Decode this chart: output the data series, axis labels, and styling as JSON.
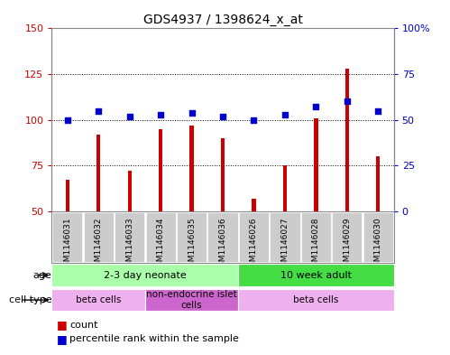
{
  "title": "GDS4937 / 1398624_x_at",
  "samples": [
    "GSM1146031",
    "GSM1146032",
    "GSM1146033",
    "GSM1146034",
    "GSM1146035",
    "GSM1146036",
    "GSM1146026",
    "GSM1146027",
    "GSM1146028",
    "GSM1146029",
    "GSM1146030"
  ],
  "counts": [
    67,
    92,
    72,
    95,
    97,
    90,
    57,
    75,
    101,
    128,
    80
  ],
  "percentiles": [
    50,
    55,
    52,
    53,
    54,
    52,
    50,
    53,
    57,
    60,
    55
  ],
  "ylim_left": [
    50,
    150
  ],
  "ylim_right": [
    0,
    100
  ],
  "yticks_left": [
    50,
    75,
    100,
    125,
    150
  ],
  "yticks_right": [
    0,
    25,
    50,
    75,
    100
  ],
  "yticklabels_right": [
    "0",
    "25",
    "50",
    "75",
    "100%"
  ],
  "bar_color": "#cc0000",
  "dot_color": "#0000cc",
  "hline_values": [
    75,
    100,
    125
  ],
  "age_groups": [
    {
      "label": "2-3 day neonate",
      "start": 0,
      "end": 6,
      "color": "#aaffaa"
    },
    {
      "label": "10 week adult",
      "start": 6,
      "end": 11,
      "color": "#44dd44"
    }
  ],
  "cell_type_groups": [
    {
      "label": "beta cells",
      "start": 0,
      "end": 3,
      "color": "#eeb0ee"
    },
    {
      "label": "non-endocrine islet\ncells",
      "start": 3,
      "end": 6,
      "color": "#cc66cc"
    },
    {
      "label": "beta cells",
      "start": 6,
      "end": 11,
      "color": "#eeb0ee"
    }
  ],
  "bg_color": "#ffffff",
  "tick_bg_color": "#cccccc",
  "border_color": "#888888"
}
